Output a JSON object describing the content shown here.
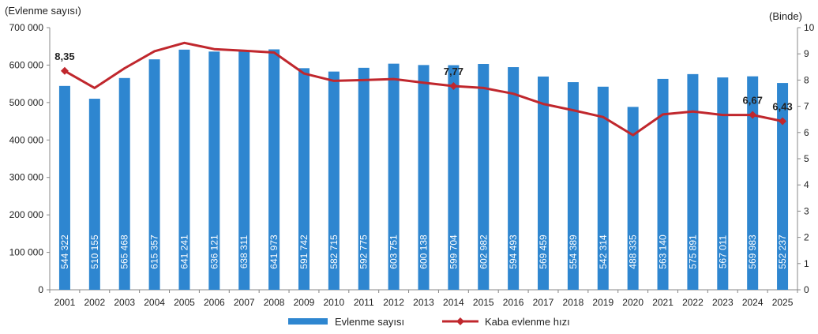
{
  "chart_data": {
    "type": "bar+line",
    "y_left_title": "(Evlenme sayısı)",
    "y_right_title": "(Binde)",
    "y_left_ticks": [
      "700 000",
      "600 000",
      "500 000",
      "400 000",
      "300 000",
      "200 000",
      "100 000",
      "0"
    ],
    "y_right_ticks": [
      "10",
      "9",
      "8",
      "7",
      "6",
      "5",
      "4",
      "3",
      "2",
      "1",
      "0"
    ],
    "y_left_range": [
      0,
      700000
    ],
    "y_right_range": [
      0,
      10
    ],
    "grid": false,
    "legend_position": "bottom",
    "categories": [
      "2001",
      "2002",
      "2003",
      "2004",
      "2005",
      "2006",
      "2007",
      "2008",
      "2009",
      "2010",
      "2011",
      "2012",
      "2013",
      "2014",
      "2015",
      "2016",
      "2017",
      "2018",
      "2019",
      "2020",
      "2021",
      "2022",
      "2023",
      "2024",
      "2025"
    ],
    "bar_series": {
      "name": "Evlenme sayısı",
      "color": "#2E86D0",
      "values": [
        544322,
        510155,
        565468,
        615357,
        641241,
        636121,
        638311,
        641973,
        591742,
        582715,
        592775,
        603751,
        600138,
        599704,
        602982,
        594493,
        569459,
        554389,
        542314,
        488335,
        563140,
        575891,
        567011,
        569983,
        552237
      ],
      "labels": [
        "544 322",
        "510 155",
        "565 468",
        "615 357",
        "641 241",
        "636 121",
        "638 311",
        "641 973",
        "591 742",
        "582 715",
        "592 775",
        "603 751",
        "600 138",
        "599 704",
        "602 982",
        "594 493",
        "569 459",
        "554 389",
        "542 314",
        "488 335",
        "563 140",
        "575 891",
        "567 011",
        "569 983",
        "552 237"
      ]
    },
    "line_series": {
      "name": "Kaba evlenme hızı",
      "color": "#C0272D",
      "values": [
        8.35,
        7.7,
        8.45,
        9.1,
        9.42,
        9.18,
        9.12,
        9.05,
        8.25,
        7.97,
        8.0,
        8.04,
        7.9,
        7.77,
        7.7,
        7.48,
        7.09,
        6.85,
        6.59,
        5.9,
        6.69,
        6.8,
        6.67,
        6.67,
        6.43
      ],
      "markers": [
        0,
        13,
        23,
        24
      ],
      "annotations": [
        {
          "index": 0,
          "text": "8,35"
        },
        {
          "index": 13,
          "text": "7,77"
        },
        {
          "index": 23,
          "text": "6,67"
        },
        {
          "index": 24,
          "text": "6,43"
        }
      ]
    }
  }
}
